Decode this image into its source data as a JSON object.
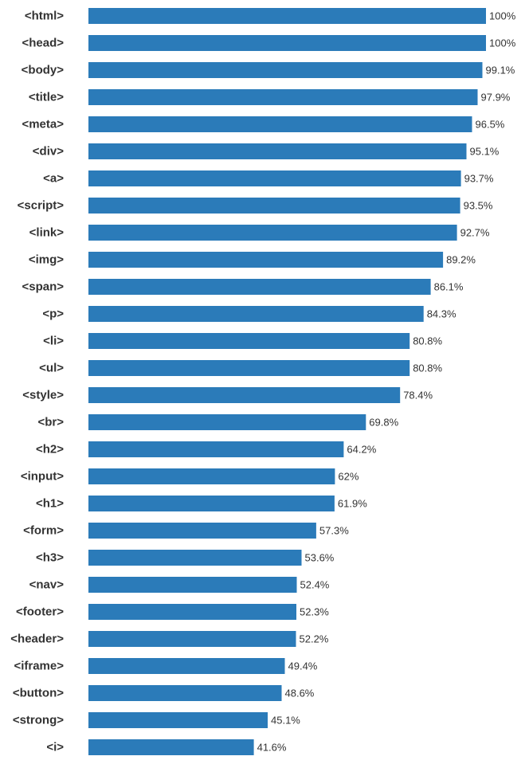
{
  "chart_data": {
    "type": "bar",
    "orientation": "horizontal",
    "title": "",
    "xlabel": "",
    "ylabel": "",
    "xlim": [
      0,
      100
    ],
    "grid": false,
    "legend": "none",
    "bar_color": "#2b7bb9",
    "text_color": "#333333",
    "value_suffix": "%",
    "categories": [
      "<html>",
      "<head>",
      "<body>",
      "<title>",
      "<meta>",
      "<div>",
      "<a>",
      "<script>",
      "<link>",
      "<img>",
      "<span>",
      "<p>",
      "<li>",
      "<ul>",
      "<style>",
      "<br>",
      "<h2>",
      "<input>",
      "<h1>",
      "<form>",
      "<h3>",
      "<nav>",
      "<footer>",
      "<header>",
      "<iframe>",
      "<button>",
      "<strong>",
      "<i>"
    ],
    "values": [
      100,
      100,
      99.1,
      97.9,
      96.5,
      95.1,
      93.7,
      93.5,
      92.7,
      89.2,
      86.1,
      84.3,
      80.8,
      80.8,
      78.4,
      69.8,
      64.2,
      62,
      61.9,
      57.3,
      53.6,
      52.4,
      52.3,
      52.2,
      49.4,
      48.6,
      45.1,
      41.6
    ]
  }
}
